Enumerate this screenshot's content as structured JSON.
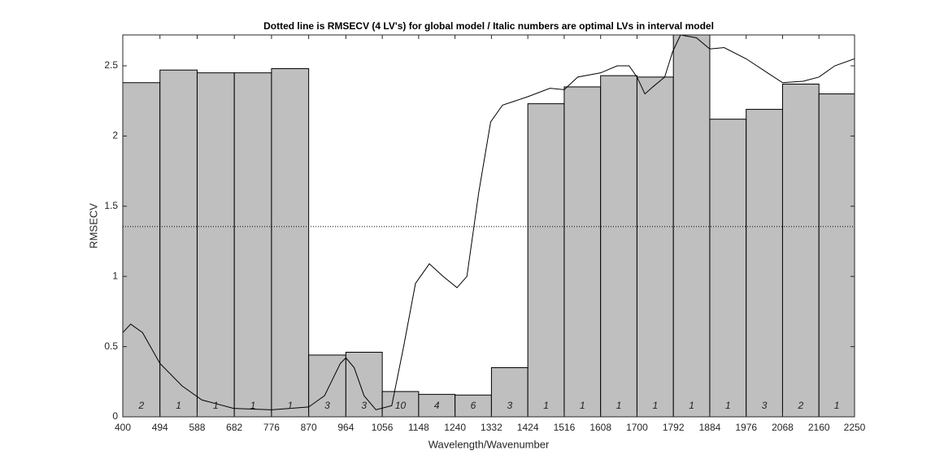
{
  "chart_data": {
    "type": "histogram",
    "title": "Dotted line is RMSECV (4 LV's) for global model / Italic numbers are optimal LVs in interval model",
    "xlabel": "Wavelength/Wavenumber",
    "ylabel": "RMSECV",
    "bins": [
      400,
      494,
      588,
      682,
      776,
      870,
      964,
      1056,
      1148,
      1240,
      1332,
      1424,
      1516,
      1608,
      1700,
      1792,
      1884,
      1976,
      2068,
      2160,
      2250
    ],
    "values": [
      2.38,
      2.47,
      2.45,
      2.45,
      2.48,
      0.44,
      0.46,
      0.18,
      0.16,
      0.155,
      0.35,
      2.23,
      2.35,
      2.43,
      2.42,
      2.72,
      2.12,
      2.19,
      2.37,
      2.3
    ],
    "color": "#bfbfbf",
    "optimal_lvs": [
      2,
      1,
      1,
      1,
      1,
      3,
      3,
      10,
      4,
      6,
      3,
      1,
      1,
      1,
      1,
      1,
      1,
      3,
      2,
      1
    ],
    "reference_line": {
      "value": 1.355
    },
    "curve": {
      "x": [
        400,
        420,
        450,
        494,
        550,
        600,
        680,
        776,
        870,
        910,
        950,
        964,
        985,
        1010,
        1040,
        1080,
        1110,
        1140,
        1175,
        1210,
        1245,
        1270,
        1300,
        1330,
        1360,
        1424,
        1480,
        1516,
        1550,
        1608,
        1650,
        1680,
        1700,
        1720,
        1740,
        1770,
        1790,
        1810,
        1850,
        1884,
        1920,
        1976,
        2030,
        2068,
        2120,
        2160,
        2200,
        2250
      ],
      "y": [
        0.6,
        0.66,
        0.6,
        0.38,
        0.22,
        0.12,
        0.06,
        0.05,
        0.07,
        0.15,
        0.38,
        0.42,
        0.35,
        0.15,
        0.05,
        0.08,
        0.5,
        0.95,
        1.09,
        1.0,
        0.92,
        1.0,
        1.6,
        2.1,
        2.22,
        2.28,
        2.34,
        2.33,
        2.42,
        2.45,
        2.5,
        2.5,
        2.42,
        2.3,
        2.35,
        2.42,
        2.6,
        2.72,
        2.7,
        2.62,
        2.63,
        2.55,
        2.45,
        2.38,
        2.39,
        2.42,
        2.5,
        2.55
      ]
    },
    "xlim": [
      400,
      2250
    ],
    "ylim": [
      0,
      2.72
    ],
    "xticks": [
      400,
      494,
      588,
      682,
      776,
      870,
      964,
      1056,
      1148,
      1240,
      1332,
      1424,
      1516,
      1608,
      1700,
      1792,
      1884,
      1976,
      2068,
      2160,
      2250
    ],
    "yticks": [
      0,
      0.5,
      1,
      1.5,
      2,
      2.5
    ]
  }
}
